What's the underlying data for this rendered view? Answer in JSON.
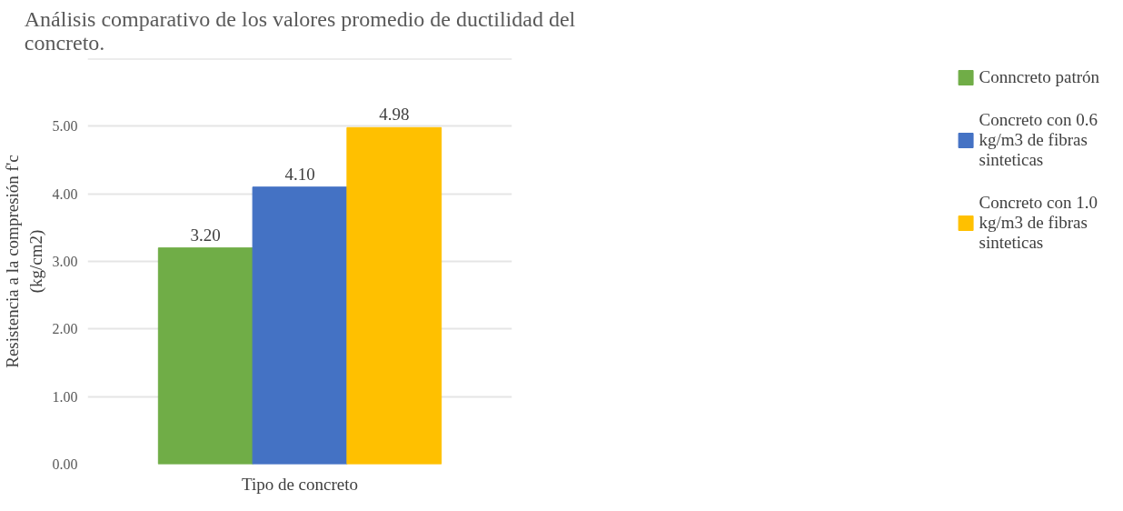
{
  "chart_data": {
    "type": "bar",
    "title": "Análisis comparativo de los valores promedio de ductilidad del concreto.",
    "xlabel": "Tipo de concreto",
    "ylabel": "Resistencia a la compresión f'c (kg/cm2)",
    "categories": [
      null
    ],
    "series": [
      {
        "name": "Conncreto patrón",
        "color": "#70ad47",
        "values": [
          3.2
        ],
        "value_labels": [
          "3.20"
        ]
      },
      {
        "name": "Concreto con 0.6 kg/m3 de fibras sinteticas",
        "color": "#4472c4",
        "values": [
          4.1
        ],
        "value_labels": [
          "4.10"
        ]
      },
      {
        "name": "Concreto con 1.0 kg/m3 de fibras sinteticas",
        "color": "#ffc000",
        "values": [
          4.98
        ],
        "value_labels": [
          "4.98"
        ]
      }
    ],
    "ylim": [
      0,
      6
    ],
    "yticks": [
      {
        "value": 0,
        "label": "0.00"
      },
      {
        "value": 1,
        "label": "1.00"
      },
      {
        "value": 2,
        "label": "2.00"
      },
      {
        "value": 3,
        "label": "3.00"
      },
      {
        "value": 4,
        "label": "4.00"
      },
      {
        "value": 5,
        "label": "5.00"
      },
      {
        "value": 6,
        "label": null
      }
    ],
    "grid": "y",
    "legend": "right"
  }
}
